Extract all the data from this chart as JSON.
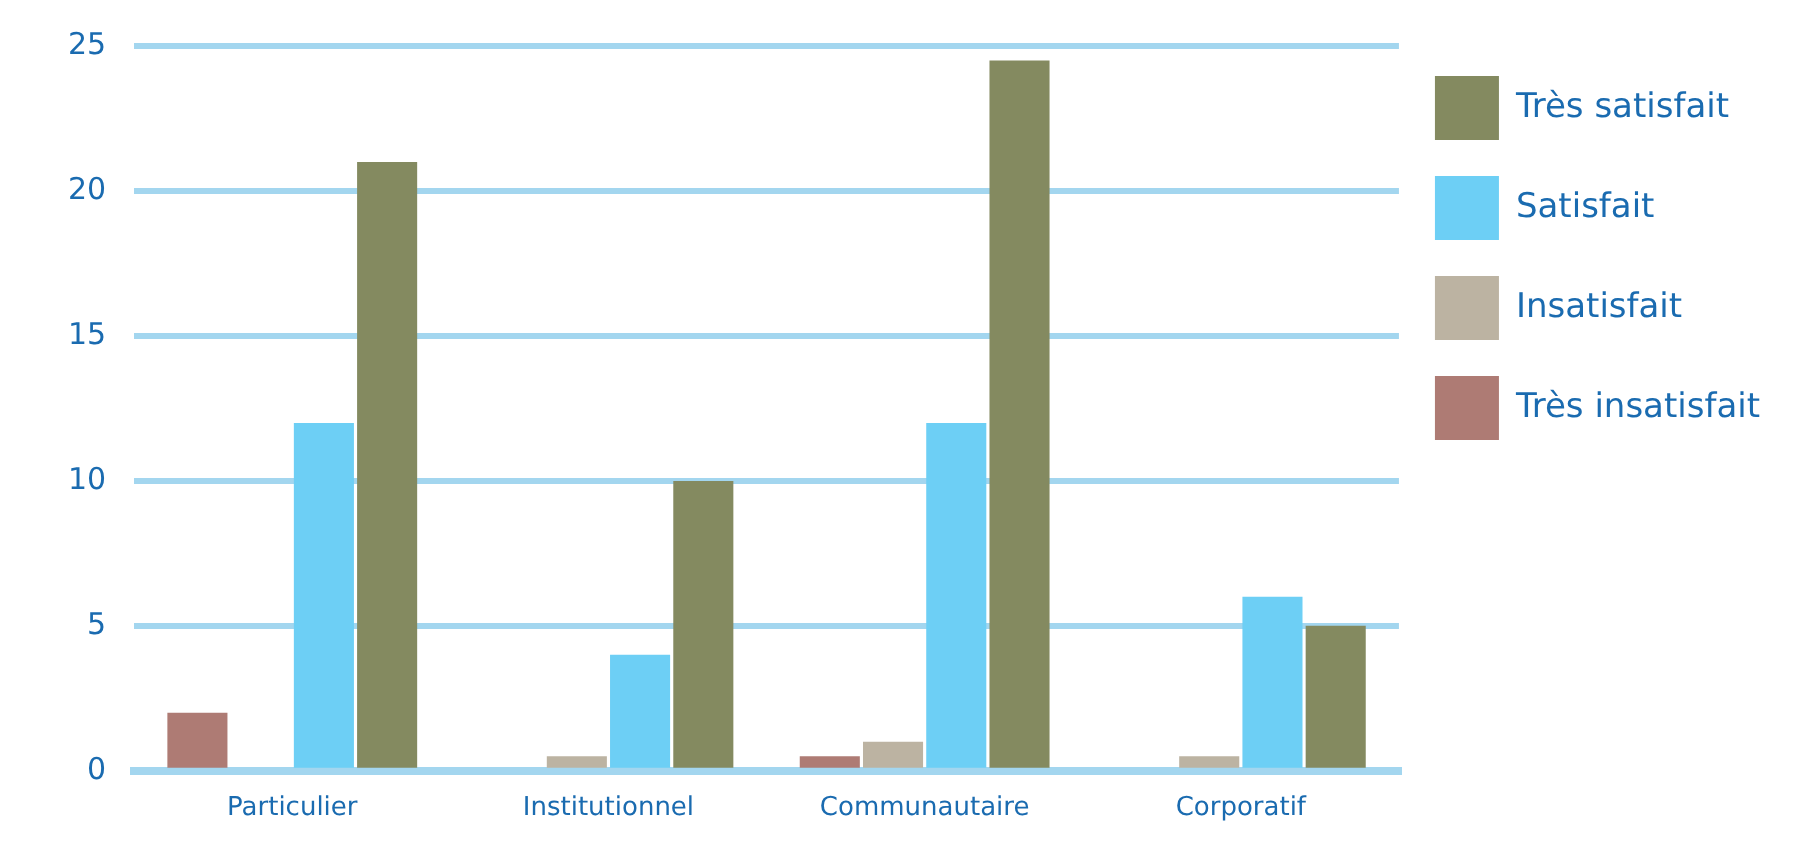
{
  "chart_data": {
    "type": "bar",
    "categories": [
      "Particulier",
      "Institutionnel",
      "Communautaire",
      "Corporatif"
    ],
    "series": [
      {
        "name": "Très insatisfait",
        "color": "#ae7b74",
        "values": [
          2,
          0,
          0.5,
          0
        ]
      },
      {
        "name": "Insatisfait",
        "color": "#bcb3a2",
        "values": [
          0,
          0.5,
          1,
          0.5
        ]
      },
      {
        "name": "Satisfait",
        "color": "#6dcff5",
        "values": [
          12,
          4,
          12,
          6
        ]
      },
      {
        "name": "Très satisfait",
        "color": "#848a60",
        "values": [
          21,
          10,
          24.5,
          5
        ]
      }
    ],
    "ylim": [
      0,
      25
    ],
    "yticks": [
      0,
      5,
      10,
      15,
      20,
      25
    ],
    "grid": "y",
    "legend": "right"
  }
}
